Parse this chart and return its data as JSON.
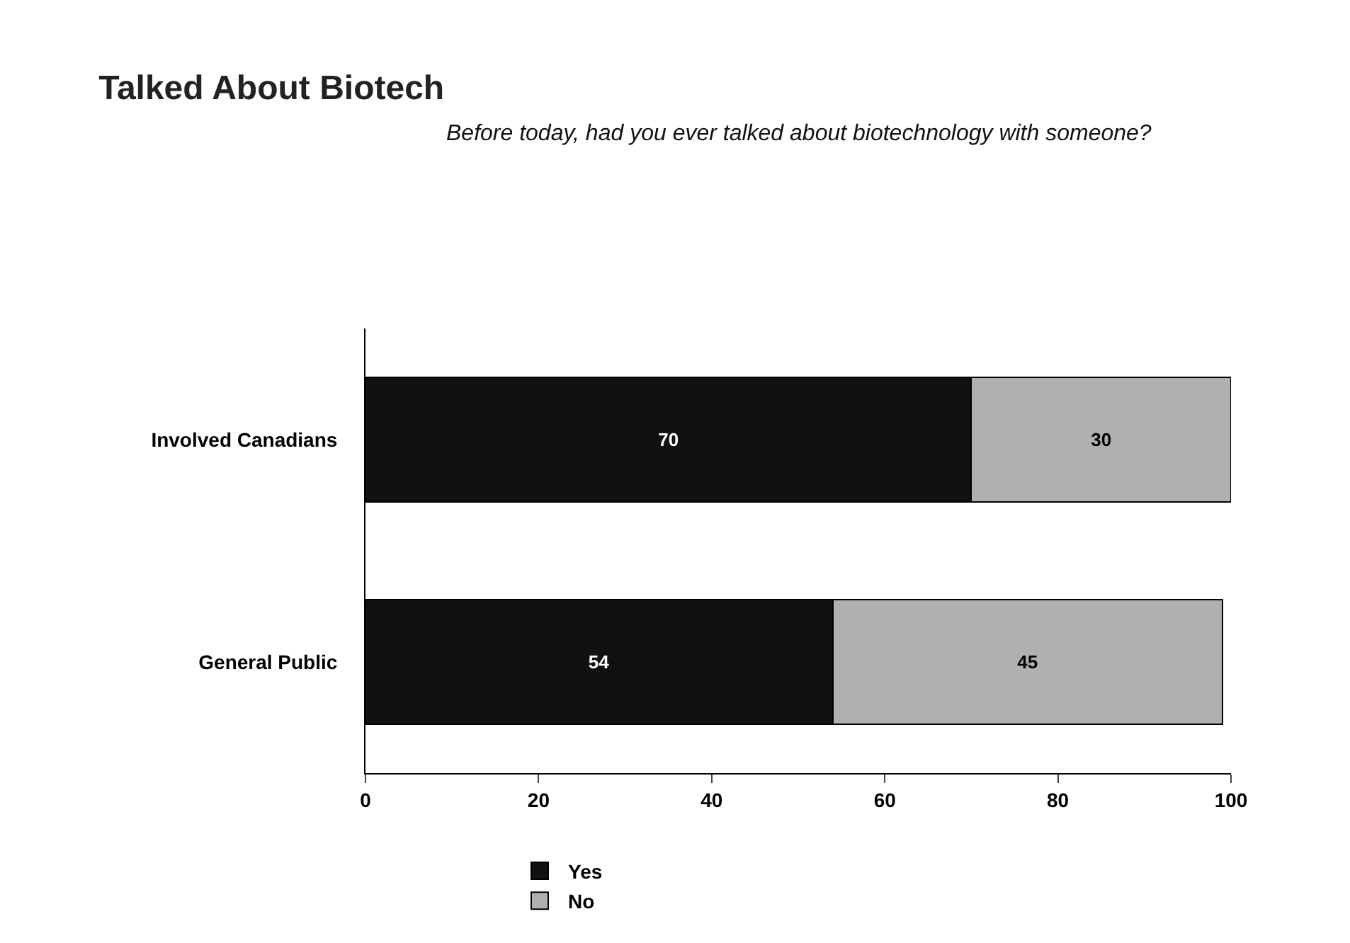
{
  "chart_data": {
    "type": "bar",
    "orientation": "horizontal",
    "stacked": true,
    "title": "Talked About Biotech",
    "subtitle": "Before today, had you ever talked about biotechnology with someone?",
    "categories": [
      "Involved Canadians",
      "General Public"
    ],
    "series": [
      {
        "name": "Yes",
        "color": "#111111",
        "values": [
          70,
          54
        ]
      },
      {
        "name": "No",
        "color": "#b0b0b0",
        "values": [
          30,
          45
        ]
      }
    ],
    "xlim": [
      0,
      100
    ],
    "xticks": [
      0,
      20,
      40,
      60,
      80,
      100
    ],
    "data_labels": true,
    "legend": "bottom",
    "grid": false
  }
}
